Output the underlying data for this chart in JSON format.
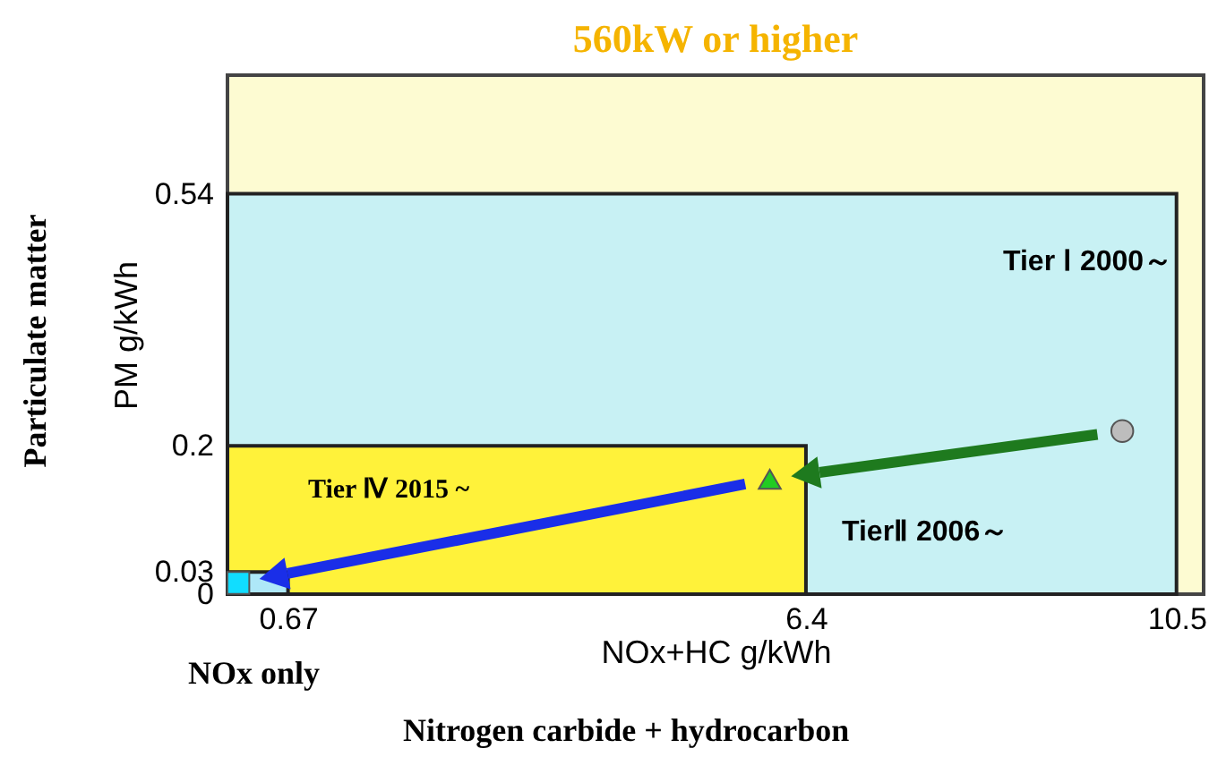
{
  "chart_data": {
    "type": "scatter",
    "title": "560kW or higher",
    "xlabel": "NOx+HC g/kWh",
    "ylabel": "PM g/kWh",
    "xlim": [
      0,
      10.8
    ],
    "ylim": [
      0,
      0.7
    ],
    "xticks": [
      0.67,
      6.4,
      10.5
    ],
    "yticks": [
      0,
      0.03,
      0.2,
      0.54
    ],
    "grid": false,
    "series": [
      {
        "type": "area",
        "color": "#c8f1f4",
        "x": [
          0,
          10.5
        ],
        "values": [
          0.54,
          0.54
        ]
      },
      {
        "type": "area",
        "color": "#fff23a",
        "x": [
          0,
          6.4
        ],
        "values": [
          0.2,
          0.2
        ]
      },
      {
        "type": "area",
        "color": "#aee8f8",
        "x": [
          0,
          0.67
        ],
        "values": [
          0.03,
          0.03
        ]
      },
      {
        "marker": "circle",
        "color": "#bdbdbd",
        "x": [
          9.9
        ],
        "values": [
          0.22
        ]
      },
      {
        "marker": "triangle",
        "color": "#22cc22",
        "x": [
          6.0
        ],
        "values": [
          0.155
        ]
      },
      {
        "marker": "square",
        "color": "#11ddff",
        "x": [
          0.12
        ],
        "values": [
          0.015
        ]
      }
    ],
    "annotations": [
      "Particulate matter",
      "NOx only",
      "Nitrogen carbide + hydrocarbon",
      "Tier Ⅰ 2000～",
      "TierⅡ 2006～",
      "Tier Ⅳ 2015 ~"
    ]
  }
}
